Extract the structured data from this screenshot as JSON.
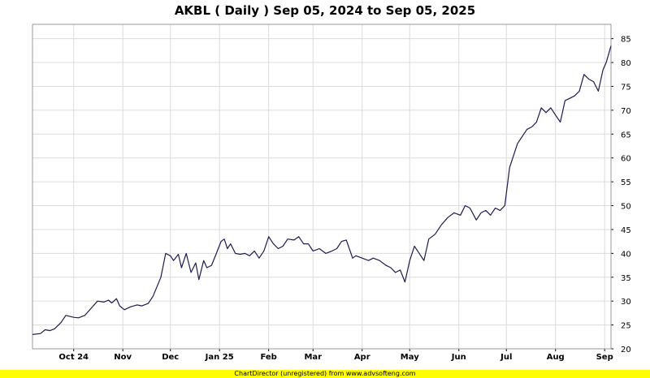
{
  "footer": "ChartDirector (unregistered) from www.advsofteng.com",
  "chart_data": {
    "type": "line",
    "title": "AKBL ( Daily ) Sep 05, 2024 to Sep 05, 2025",
    "xlabel": "",
    "ylabel": "",
    "ylim": [
      20,
      88
    ],
    "yticks": [
      20,
      25,
      30,
      35,
      40,
      45,
      50,
      55,
      60,
      65,
      70,
      75,
      80,
      85
    ],
    "grid": true,
    "line_color": "#1c1c4e",
    "x_ticks": [
      {
        "label": "Oct 24",
        "date": "2024-10-01"
      },
      {
        "label": "Nov",
        "date": "2024-11-01"
      },
      {
        "label": "Dec",
        "date": "2024-12-01"
      },
      {
        "label": "Jan 25",
        "date": "2025-01-01"
      },
      {
        "label": "Feb",
        "date": "2025-02-01"
      },
      {
        "label": "Mar",
        "date": "2025-03-01"
      },
      {
        "label": "Apr",
        "date": "2025-04-01"
      },
      {
        "label": "May",
        "date": "2025-05-01"
      },
      {
        "label": "Jun",
        "date": "2025-06-01"
      },
      {
        "label": "Jul",
        "date": "2025-07-01"
      },
      {
        "label": "Aug",
        "date": "2025-08-01"
      },
      {
        "label": "Sep",
        "date": "2025-09-01"
      }
    ],
    "x_range": [
      "2024-09-05",
      "2025-09-05"
    ],
    "series": [
      {
        "x": [
          "2024-09-05",
          "2024-09-10",
          "2024-09-13",
          "2024-09-16",
          "2024-09-19",
          "2024-09-23",
          "2024-09-26",
          "2024-10-01",
          "2024-10-04",
          "2024-10-08",
          "2024-10-12",
          "2024-10-16",
          "2024-10-20",
          "2024-10-23",
          "2024-10-25",
          "2024-10-28",
          "2024-10-30",
          "2024-11-02",
          "2024-11-06",
          "2024-11-10",
          "2024-11-13",
          "2024-11-17",
          "2024-11-20",
          "2024-11-25",
          "2024-11-28",
          "2024-12-01",
          "2024-12-03",
          "2024-12-06",
          "2024-12-08",
          "2024-12-11",
          "2024-12-14",
          "2024-12-17",
          "2024-12-19",
          "2024-12-22",
          "2024-12-24",
          "2024-12-27",
          "2024-12-30",
          "2025-01-02",
          "2025-01-04",
          "2025-01-06",
          "2025-01-08",
          "2025-01-11",
          "2025-01-14",
          "2025-01-17",
          "2025-01-20",
          "2025-01-23",
          "2025-01-26",
          "2025-01-29",
          "2025-02-01",
          "2025-02-04",
          "2025-02-07",
          "2025-02-10",
          "2025-02-13",
          "2025-02-17",
          "2025-02-20",
          "2025-02-23",
          "2025-02-26",
          "2025-03-01",
          "2025-03-05",
          "2025-03-09",
          "2025-03-13",
          "2025-03-16",
          "2025-03-19",
          "2025-03-22",
          "2025-03-26",
          "2025-03-28",
          "2025-04-01",
          "2025-04-05",
          "2025-04-08",
          "2025-04-12",
          "2025-04-16",
          "2025-04-19",
          "2025-04-22",
          "2025-04-25",
          "2025-04-28",
          "2025-05-01",
          "2025-05-04",
          "2025-05-07",
          "2025-05-10",
          "2025-05-13",
          "2025-05-17",
          "2025-05-21",
          "2025-05-25",
          "2025-05-29",
          "2025-06-02",
          "2025-06-05",
          "2025-06-08",
          "2025-06-12",
          "2025-06-15",
          "2025-06-18",
          "2025-06-21",
          "2025-06-24",
          "2025-06-27",
          "2025-06-30",
          "2025-07-03",
          "2025-07-05",
          "2025-07-08",
          "2025-07-11",
          "2025-07-14",
          "2025-07-17",
          "2025-07-20",
          "2025-07-23",
          "2025-07-26",
          "2025-07-29",
          "2025-08-01",
          "2025-08-04",
          "2025-08-07",
          "2025-08-10",
          "2025-08-13",
          "2025-08-16",
          "2025-08-19",
          "2025-08-22",
          "2025-08-25",
          "2025-08-28",
          "2025-08-31",
          "2025-09-02",
          "2025-09-05"
        ],
        "y": [
          23.0,
          23.2,
          24.0,
          23.8,
          24.2,
          25.5,
          27.0,
          26.6,
          26.5,
          27.0,
          28.5,
          30.0,
          29.8,
          30.2,
          29.6,
          30.5,
          29.0,
          28.2,
          28.8,
          29.2,
          29.0,
          29.5,
          31.0,
          35.0,
          40.0,
          39.5,
          38.5,
          39.8,
          37.0,
          40.0,
          36.0,
          38.0,
          34.5,
          38.5,
          37.0,
          37.5,
          40.0,
          42.5,
          43.0,
          41.0,
          42.0,
          40.0,
          39.8,
          40.0,
          39.5,
          40.5,
          39.0,
          40.5,
          43.5,
          42.0,
          41.0,
          41.5,
          43.0,
          42.8,
          43.5,
          42.0,
          42.0,
          40.5,
          41.0,
          40.0,
          40.5,
          41.0,
          42.5,
          42.8,
          39.0,
          39.5,
          39.0,
          38.5,
          39.0,
          38.5,
          37.5,
          37.0,
          36.0,
          36.5,
          34.0,
          38.5,
          41.5,
          40.0,
          38.5,
          43.0,
          44.0,
          46.0,
          47.5,
          48.5,
          48.0,
          50.0,
          49.5,
          47.0,
          48.5,
          49.0,
          48.0,
          49.5,
          49.0,
          50.0,
          58.0,
          60.0,
          63.0,
          64.5,
          66.0,
          66.5,
          67.5,
          70.5,
          69.5,
          70.5,
          69.0,
          67.5,
          72.0,
          72.5,
          73.0,
          74.0,
          77.5,
          76.5,
          76.0,
          74.0,
          78.5,
          80.0,
          83.5
        ]
      }
    ]
  }
}
